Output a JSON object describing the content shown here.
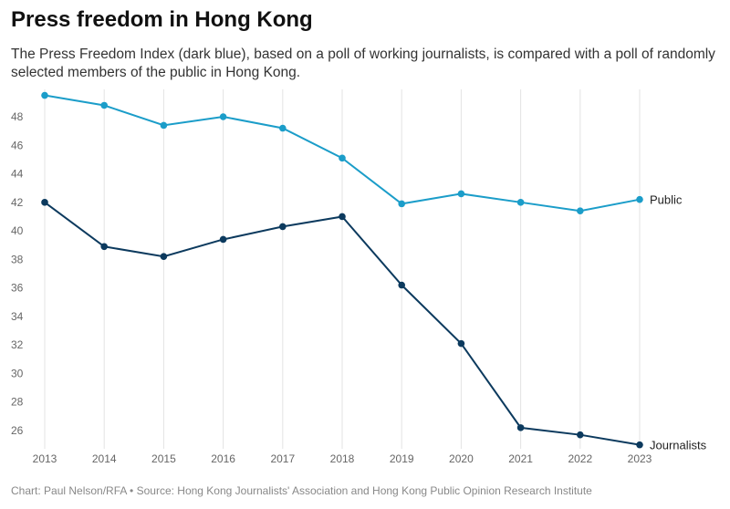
{
  "title": "Press freedom in Hong Kong",
  "subtitle": "The Press Freedom Index (dark blue), based on a poll of working journalists, is compared with a poll of randomly selected members of the public in Hong Kong.",
  "footer": "Chart: Paul Nelson/RFA • Source: Hong Kong Journalists' Association and Hong Kong Public Opinion Research Institute",
  "chart_data": {
    "type": "line",
    "title": "Press freedom in Hong Kong",
    "x": [
      2013,
      2014,
      2015,
      2016,
      2017,
      2018,
      2019,
      2020,
      2021,
      2022,
      2023
    ],
    "yticks": [
      26,
      28,
      30,
      32,
      34,
      36,
      38,
      40,
      42,
      44,
      46,
      48
    ],
    "ylim": [
      25,
      49.6
    ],
    "grid": "vertical",
    "series": [
      {
        "name": "Public",
        "color": "#1b9dc9",
        "values": [
          49.5,
          48.8,
          47.4,
          48.0,
          47.2,
          45.1,
          41.9,
          42.6,
          42.0,
          41.4,
          42.2
        ]
      },
      {
        "name": "Journalists",
        "color": "#0c3a5e",
        "values": [
          42.0,
          38.9,
          38.2,
          39.4,
          40.3,
          41.0,
          36.2,
          32.1,
          26.2,
          25.7,
          25.0
        ]
      }
    ]
  }
}
